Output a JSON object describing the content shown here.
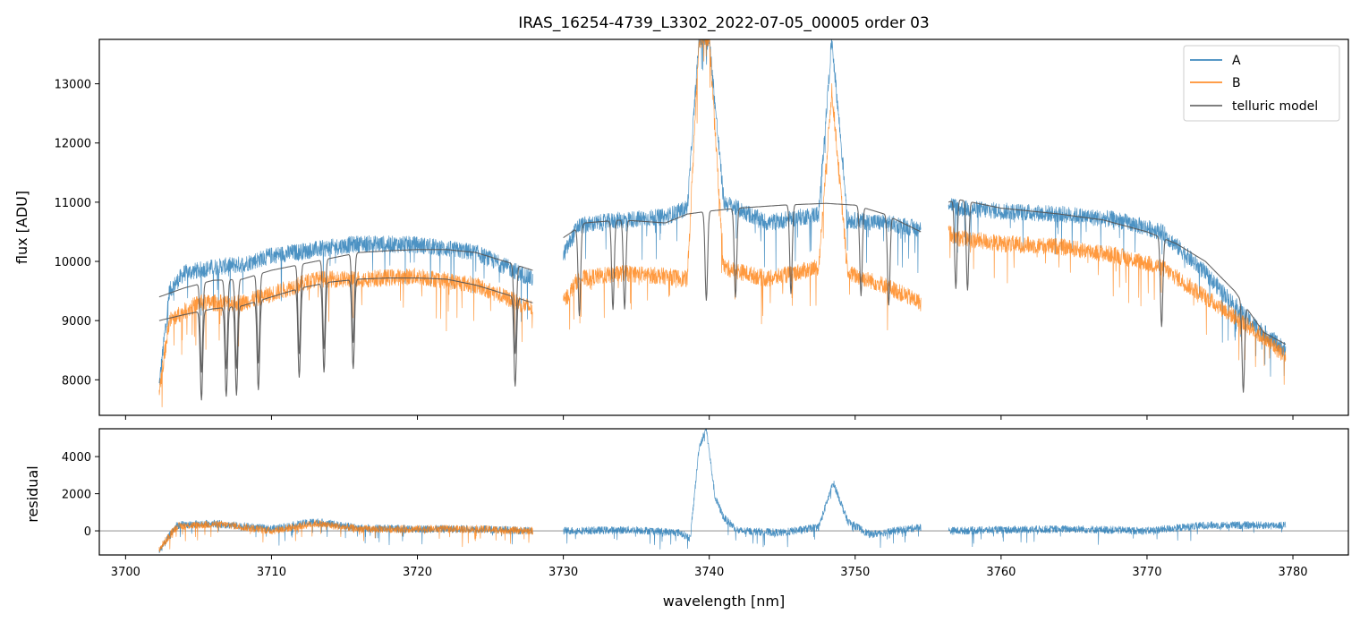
{
  "chart_data": [
    {
      "type": "line",
      "title": "IRAS_16254-4739_L3302_2022-07-05_00005  order 03",
      "xlabel": "",
      "ylabel": "flux [ADU]",
      "xlim": [
        3698.2,
        3783.8
      ],
      "ylim": [
        7400,
        13750
      ],
      "xticks": [
        3700,
        3710,
        3720,
        3730,
        3740,
        3750,
        3760,
        3770,
        3780
      ],
      "yticks": [
        8000,
        9000,
        10000,
        11000,
        12000,
        13000
      ],
      "ytick_labels": [
        "8000",
        "9000",
        "10000",
        "11000",
        "12000",
        "13000"
      ],
      "grid": false,
      "legend": {
        "placement": "top-right",
        "entries": [
          "A",
          "B",
          "telluric model"
        ]
      },
      "series": [
        {
          "name": "A",
          "color": "#1f77b4",
          "segments": [
            {
              "x": [
                3702.3,
                3703.0,
                3704.0,
                3706.0,
                3708.0,
                3710.0,
                3713.0,
                3716.0,
                3720.0,
                3724.0,
                3727.9
              ],
              "y": [
                7900,
                9500,
                9800,
                9900,
                9950,
                10100,
                10200,
                10300,
                10280,
                10150,
                9700
              ]
            },
            {
              "x": [
                3730.0,
                3731.0,
                3734.0,
                3737.0,
                3738.5,
                3739.3,
                3740.0,
                3741.0,
                3744.0,
                3747.5,
                3748.4,
                3749.5,
                3752.0,
                3754.5
              ],
              "y": [
                10100,
                10600,
                10700,
                10750,
                10900,
                13750,
                13750,
                11000,
                10650,
                10800,
                13750,
                10700,
                10650,
                10550
              ]
            },
            {
              "x": [
                3756.4,
                3757.0,
                3760.0,
                3764.0,
                3768.0,
                3771.0,
                3774.0,
                3777.0,
                3779.5
              ],
              "y": [
                11000,
                10900,
                10850,
                10800,
                10700,
                10500,
                9800,
                9000,
                8500
              ]
            }
          ]
        },
        {
          "name": "B",
          "color": "#ff7f0e",
          "segments": [
            {
              "x": [
                3702.3,
                3703.0,
                3705.0,
                3708.0,
                3710.0,
                3713.0,
                3716.0,
                3720.0,
                3724.0,
                3727.9
              ],
              "y": [
                7800,
                9000,
                9300,
                9300,
                9450,
                9700,
                9700,
                9750,
                9600,
                9200
              ]
            },
            {
              "x": [
                3730.0,
                3731.0,
                3734.0,
                3737.0,
                3738.5,
                3739.3,
                3740.0,
                3741.0,
                3744.0,
                3747.5,
                3748.4,
                3749.5,
                3752.0,
                3754.5
              ],
              "y": [
                9300,
                9700,
                9800,
                9750,
                9700,
                13750,
                13750,
                9900,
                9700,
                9900,
                12900,
                9800,
                9600,
                9300
              ]
            },
            {
              "x": [
                3756.4,
                3757.0,
                3760.0,
                3764.0,
                3768.0,
                3771.0,
                3774.0,
                3777.0,
                3779.5
              ],
              "y": [
                10500,
                10400,
                10300,
                10250,
                10100,
                9900,
                9400,
                8900,
                8400
              ]
            }
          ]
        },
        {
          "name": "telluric model",
          "color": "#555555",
          "segments": [
            {
              "x": [
                3702.3,
                3704.0,
                3706.0,
                3708.0,
                3710.0,
                3712.0,
                3714.0,
                3716.0,
                3718.0,
                3720.0,
                3722.0,
                3724.0,
                3726.0,
                3727.9
              ],
              "y": [
                9400,
                9550,
                9680,
                9700,
                9850,
                9950,
                10050,
                10150,
                10180,
                10200,
                10200,
                10150,
                10000,
                9850
              ]
            },
            {
              "x": [
                3702.3,
                3704.0,
                3706.0,
                3708.0,
                3710.0,
                3712.0,
                3714.0,
                3716.0,
                3718.0,
                3720.0,
                3722.0,
                3724.0,
                3726.0,
                3727.9
              ],
              "y": [
                9000,
                9100,
                9200,
                9250,
                9400,
                9550,
                9650,
                9700,
                9720,
                9720,
                9700,
                9600,
                9450,
                9300
              ]
            },
            {
              "x": [
                3730.0,
                3731.5,
                3734.0,
                3737.0,
                3738.5,
                3740.0,
                3742.0,
                3745.0,
                3748.0,
                3750.0,
                3752.0,
                3754.5
              ],
              "y": [
                10400,
                10650,
                10700,
                10650,
                10800,
                10850,
                10900,
                10950,
                10980,
                10950,
                10800,
                10500
              ]
            },
            {
              "x": [
                3756.4,
                3757.0,
                3760.0,
                3764.0,
                3767.0,
                3770.0,
                3772.0,
                3774.0,
                3776.0,
                3778.0,
                3779.5
              ],
              "y": [
                11000,
                11050,
                10900,
                10800,
                10700,
                10500,
                10300,
                10000,
                9500,
                8800,
                8600
              ]
            }
          ],
          "absorption_lines": [
            3705.2,
            3706.9,
            3707.6,
            3709.1,
            3711.9,
            3713.6,
            3715.6,
            3726.7,
            3731.1,
            3733.4,
            3734.2,
            3739.8,
            3741.8,
            3745.6,
            3750.4,
            3752.3,
            3756.9,
            3757.7,
            3771.0,
            3776.6
          ]
        }
      ]
    },
    {
      "type": "line",
      "title": "",
      "xlabel": "wavelength [nm]",
      "ylabel": "residual",
      "xlim": [
        3698.2,
        3783.8
      ],
      "ylim": [
        -1300,
        5500
      ],
      "xticks": [
        3700,
        3710,
        3720,
        3730,
        3740,
        3750,
        3760,
        3770,
        3780
      ],
      "xtick_labels": [
        "3700",
        "3710",
        "3720",
        "3730",
        "3740",
        "3750",
        "3760",
        "3770",
        "3780"
      ],
      "yticks": [
        0,
        2000,
        4000
      ],
      "ytick_labels": [
        "0",
        "2000",
        "4000"
      ],
      "reference_line": 0,
      "grid": false,
      "series": [
        {
          "name": "A",
          "color": "#1f77b4",
          "segments": [
            {
              "x": [
                3702.3,
                3703.5,
                3706.0,
                3710.0,
                3713.0,
                3716.0,
                3720.0,
                3724.0,
                3727.9
              ],
              "y": [
                -1100,
                300,
                400,
                100,
                500,
                150,
                100,
                100,
                0
              ]
            },
            {
              "x": [
                3730.0,
                3735.0,
                3738.0,
                3738.7,
                3739.3,
                3739.8,
                3740.4,
                3741.0,
                3742.0,
                3745.0,
                3747.5,
                3748.5,
                3749.5,
                3751.0,
                3754.5
              ],
              "y": [
                0,
                50,
                -100,
                -400,
                4500,
                5500,
                1800,
                700,
                0,
                -100,
                200,
                2600,
                500,
                -200,
                200
              ]
            },
            {
              "x": [
                3756.4,
                3760.0,
                3765.0,
                3770.0,
                3774.0,
                3779.5
              ],
              "y": [
                0,
                50,
                100,
                0,
                300,
                300
              ]
            }
          ]
        },
        {
          "name": "B",
          "color": "#ff7f0e",
          "segments": [
            {
              "x": [
                3702.3,
                3703.5,
                3706.0,
                3707.2,
                3710.0,
                3713.0,
                3716.0,
                3720.0,
                3724.0,
                3727.9
              ],
              "y": [
                -1000,
                250,
                350,
                300,
                0,
                400,
                100,
                100,
                100,
                0
              ]
            }
          ]
        }
      ]
    }
  ]
}
